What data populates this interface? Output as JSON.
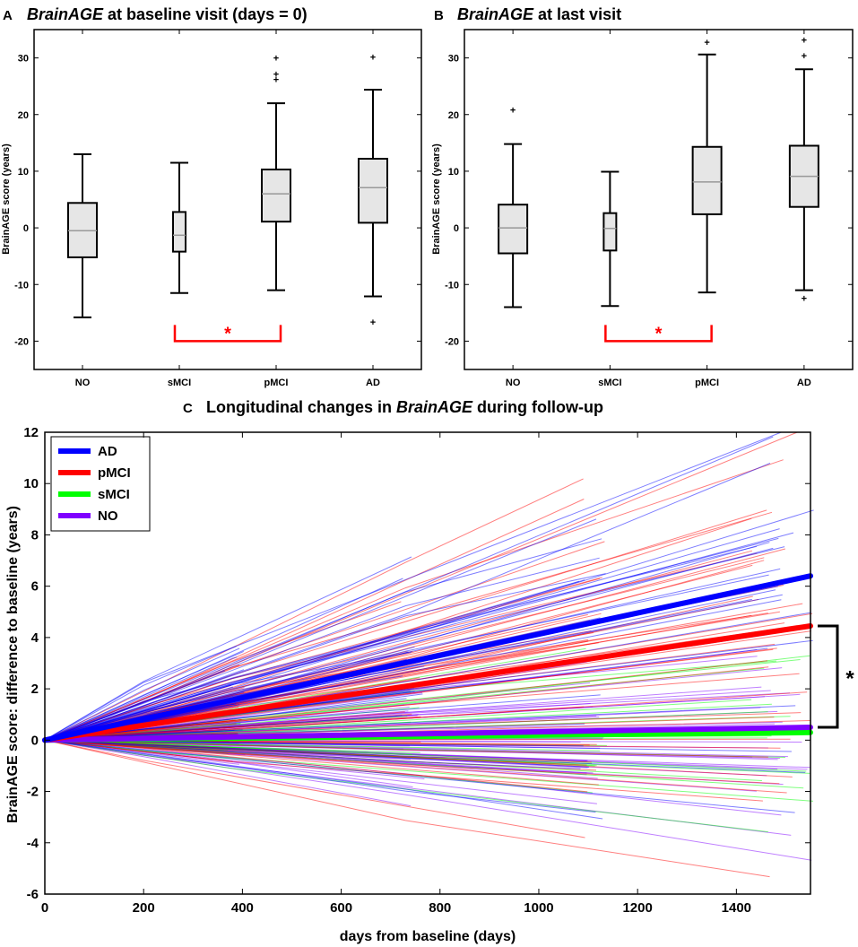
{
  "chart_data": [
    {
      "panel": "A",
      "type": "box",
      "title_em": "BrainAGE",
      "title_rest": " at baseline visit (days = 0)",
      "ylabel": "BrainAGE score (years)",
      "ylim": [
        -25,
        35
      ],
      "yticks": [
        -20,
        -10,
        0,
        10,
        20,
        30
      ],
      "categories": [
        "NO",
        "sMCI",
        "pMCI",
        "AD"
      ],
      "boxes": [
        {
          "group": "NO",
          "whisker_low": -15.8,
          "q1": -5.2,
          "median": -0.5,
          "q3": 4.4,
          "whisker_high": 13.0,
          "outliers": []
        },
        {
          "group": "sMCI",
          "whisker_low": -11.5,
          "q1": -4.2,
          "median": -1.3,
          "q3": 2.8,
          "whisker_high": 11.5,
          "outliers": []
        },
        {
          "group": "pMCI",
          "whisker_low": -11.0,
          "q1": 1.1,
          "median": 6.0,
          "q3": 10.3,
          "whisker_high": 22.0,
          "outliers": [
            26.2,
            27.2,
            30.0
          ]
        },
        {
          "group": "AD",
          "whisker_low": -12.1,
          "q1": 0.9,
          "median": 7.1,
          "q3": 12.2,
          "whisker_high": 24.4,
          "outliers": [
            -16.6,
            30.2
          ]
        }
      ],
      "significance": {
        "from": "sMCI",
        "to": "pMCI",
        "label": "*",
        "y": -20
      }
    },
    {
      "panel": "B",
      "type": "box",
      "title_em": "BrainAGE",
      "title_rest": " at last visit",
      "ylabel": "BrainAGE score (years)",
      "ylim": [
        -25,
        35
      ],
      "yticks": [
        -20,
        -10,
        0,
        10,
        20,
        30
      ],
      "categories": [
        "NO",
        "sMCI",
        "pMCI",
        "AD"
      ],
      "boxes": [
        {
          "group": "NO",
          "whisker_low": -14.0,
          "q1": -4.5,
          "median": 0.0,
          "q3": 4.1,
          "whisker_high": 14.8,
          "outliers": [
            20.8
          ]
        },
        {
          "group": "sMCI",
          "whisker_low": -13.8,
          "q1": -4.0,
          "median": -0.1,
          "q3": 2.6,
          "whisker_high": 9.9,
          "outliers": []
        },
        {
          "group": "pMCI",
          "whisker_low": -11.4,
          "q1": 2.4,
          "median": 8.1,
          "q3": 14.3,
          "whisker_high": 30.6,
          "outliers": [
            32.8
          ]
        },
        {
          "group": "AD",
          "whisker_low": -11.0,
          "q1": 3.7,
          "median": 9.1,
          "q3": 14.5,
          "whisker_high": 28.0,
          "outliers": [
            -12.4,
            30.4,
            33.2
          ]
        }
      ],
      "significance": {
        "from": "sMCI",
        "to": "pMCI",
        "label": "*",
        "y": -20
      }
    },
    {
      "panel": "C",
      "type": "line",
      "title_pre": "Longitudinal changes in ",
      "title_em": "BrainAGE",
      "title_post": " during follow-up",
      "xlabel": "days from baseline (days)",
      "ylabel": "BrainAGE score: difference to baseline (years)",
      "xlim": [
        0,
        1550
      ],
      "ylim": [
        -6,
        12
      ],
      "xticks": [
        0,
        200,
        400,
        600,
        800,
        1000,
        1200,
        1400
      ],
      "yticks": [
        -6,
        -4,
        -2,
        0,
        2,
        4,
        6,
        8,
        10,
        12
      ],
      "series": [
        {
          "name": "AD",
          "color": "#0000ff",
          "x": [
            0,
            1550
          ],
          "y": [
            0,
            6.4
          ]
        },
        {
          "name": "pMCI",
          "color": "#ff0000",
          "x": [
            0,
            1550
          ],
          "y": [
            0,
            4.45
          ]
        },
        {
          "name": "sMCI",
          "color": "#00ff00",
          "x": [
            0,
            1550
          ],
          "y": [
            0,
            0.3
          ]
        },
        {
          "name": "NO",
          "color": "#7f00ff",
          "x": [
            0,
            1550
          ],
          "y": [
            0,
            0.5
          ]
        }
      ],
      "individual_trajectories": {
        "description_groups": [
          "AD",
          "pMCI",
          "sMCI",
          "NO"
        ]
      },
      "significance": {
        "label": "*",
        "y_top": 4.45,
        "y_bottom": 0.5
      }
    }
  ]
}
